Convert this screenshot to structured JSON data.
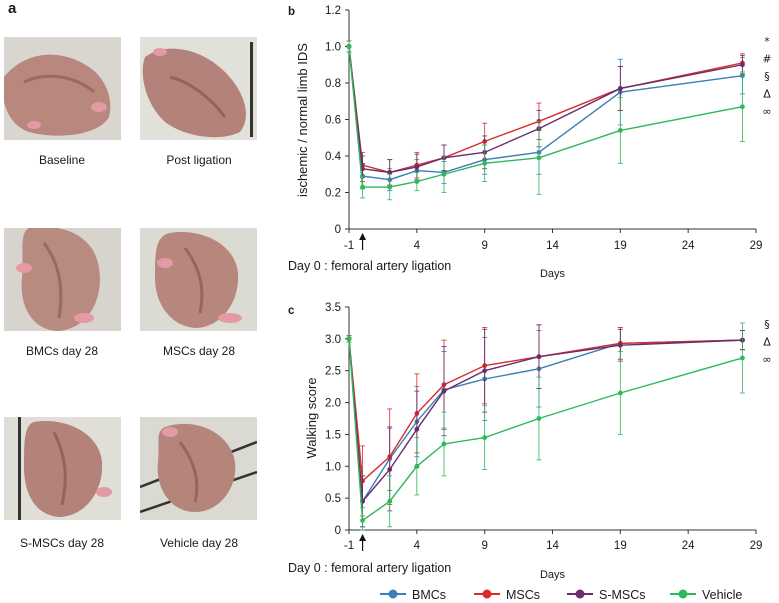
{
  "panel_a": {
    "letter": "a",
    "photos": [
      {
        "caption": "Baseline"
      },
      {
        "caption": "Post ligation"
      },
      {
        "caption": "BMCs day 28"
      },
      {
        "caption": "MSCs day 28"
      },
      {
        "caption": "S-MSCs day 28"
      },
      {
        "caption": "Vehicle day 28"
      }
    ]
  },
  "colors": {
    "BMCs": "#3a7fb5",
    "MSCs": "#d92b2b",
    "S-MSCs": "#6b2d6b",
    "Vehicle": "#2db85a",
    "skin": "#b8877e",
    "background": "#dcdcd4"
  },
  "chart_data": [
    {
      "panel": "b",
      "type": "line",
      "title": "",
      "ylabel": "ischemic / normal limb IDS",
      "xlabel": "Days",
      "x_annotation": "Day 0 : femoral artery ligation",
      "ylim": [
        0,
        1.2
      ],
      "yticks": [
        "0",
        "0.2",
        "0.4",
        "0.6",
        "0.8",
        "1.0",
        "1.2"
      ],
      "xlim": [
        -1,
        29
      ],
      "xticks": [
        "-1",
        "4",
        "9",
        "14",
        "19",
        "24",
        "29"
      ],
      "arrow_at_x": 0,
      "x": [
        -1,
        0,
        2,
        4,
        6,
        9,
        13,
        19,
        28
      ],
      "series": [
        {
          "name": "BMCs",
          "values": [
            1.0,
            0.29,
            0.27,
            0.32,
            0.31,
            0.38,
            0.42,
            0.75,
            0.84
          ],
          "errors": [
            0.03,
            0.07,
            0.06,
            0.06,
            0.06,
            0.08,
            0.12,
            0.18,
            0.1
          ]
        },
        {
          "name": "MSCs",
          "values": [
            1.0,
            0.35,
            0.31,
            0.35,
            0.39,
            0.48,
            0.59,
            0.77,
            0.91
          ],
          "errors": [
            0.03,
            0.07,
            0.07,
            0.07,
            0.07,
            0.1,
            0.1,
            0.12,
            0.05
          ]
        },
        {
          "name": "S-MSCs",
          "values": [
            1.0,
            0.33,
            0.31,
            0.34,
            0.39,
            0.42,
            0.55,
            0.77,
            0.9
          ],
          "errors": [
            0.03,
            0.07,
            0.07,
            0.07,
            0.07,
            0.09,
            0.1,
            0.12,
            0.05
          ]
        },
        {
          "name": "Vehicle",
          "values": [
            1.0,
            0.23,
            0.23,
            0.26,
            0.3,
            0.36,
            0.39,
            0.54,
            0.67
          ],
          "errors": [
            0.03,
            0.06,
            0.07,
            0.05,
            0.1,
            0.1,
            0.2,
            0.18,
            0.19
          ]
        }
      ],
      "significance": [
        "*",
        "#",
        "§",
        "Δ",
        "∞"
      ]
    },
    {
      "panel": "c",
      "type": "line",
      "title": "",
      "ylabel": "Walking score",
      "xlabel": "Days",
      "x_annotation": "Day 0 : femoral artery ligation",
      "ylim": [
        0,
        3.5
      ],
      "yticks": [
        "0",
        "0.5",
        "1.0",
        "1.5",
        "2.0",
        "2.5",
        "3.0",
        "3.5"
      ],
      "xlim": [
        -1,
        29
      ],
      "xticks": [
        "-1",
        "4",
        "9",
        "14",
        "19",
        "24",
        "29"
      ],
      "arrow_at_x": 0,
      "x": [
        -1,
        0,
        2,
        4,
        6,
        9,
        13,
        19,
        28
      ],
      "series": [
        {
          "name": "BMCs",
          "values": [
            3.0,
            0.45,
            1.12,
            1.7,
            2.2,
            2.37,
            2.53,
            2.93,
            2.98
          ],
          "errors": [
            0.05,
            0.4,
            0.5,
            0.55,
            0.6,
            0.65,
            0.6,
            0.25,
            0.15
          ]
        },
        {
          "name": "MSCs",
          "values": [
            3.0,
            0.77,
            1.15,
            1.83,
            2.28,
            2.58,
            2.72,
            2.93,
            2.98
          ],
          "errors": [
            0.05,
            0.55,
            0.75,
            0.62,
            0.7,
            0.6,
            0.5,
            0.25,
            0.15
          ]
        },
        {
          "name": "S-MSCs",
          "values": [
            3.0,
            0.45,
            0.95,
            1.58,
            2.18,
            2.5,
            2.72,
            2.9,
            2.98
          ],
          "errors": [
            0.05,
            0.4,
            0.65,
            0.6,
            0.7,
            0.65,
            0.5,
            0.25,
            0.15
          ]
        },
        {
          "name": "Vehicle",
          "values": [
            3.0,
            0.15,
            0.45,
            1.0,
            1.35,
            1.45,
            1.75,
            2.15,
            2.7
          ],
          "errors": [
            0.05,
            0.2,
            0.4,
            0.45,
            0.5,
            0.5,
            0.65,
            0.65,
            0.55
          ]
        }
      ],
      "significance": [
        "§",
        "Δ",
        "∞"
      ]
    }
  ],
  "legend": [
    "BMCs",
    "MSCs",
    "S-MSCs",
    "Vehicle"
  ]
}
